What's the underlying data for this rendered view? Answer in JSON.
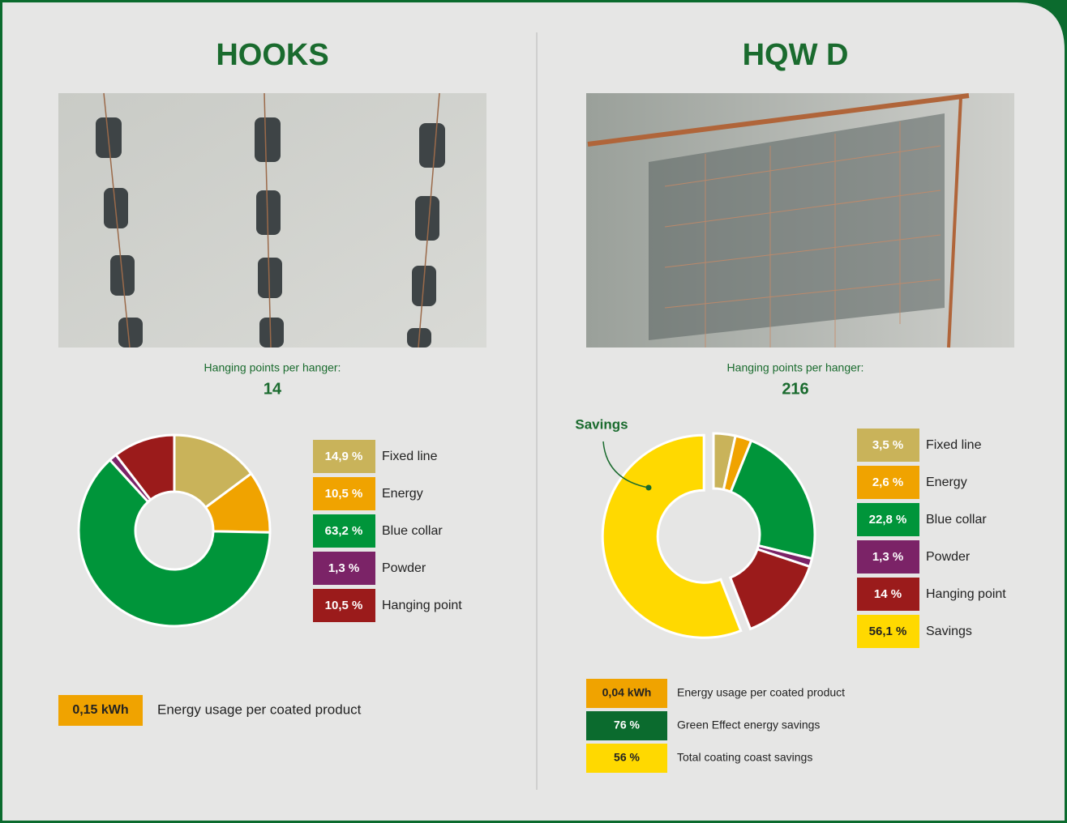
{
  "chart_data": [
    {
      "type": "pie",
      "title": "HOOKS",
      "subtitle": "Hanging points per hanger:",
      "subtitle_value": 14,
      "categories": [
        "Fixed line",
        "Energy",
        "Blue collar",
        "Powder",
        "Hanging point"
      ],
      "values": [
        14.9,
        10.5,
        63.2,
        1.3,
        10.5
      ],
      "value_labels": [
        "14,9 %",
        "10,5 %",
        "63,2 %",
        "1,3 %",
        "10,5 %"
      ],
      "colors": [
        "#c9b35a",
        "#f0a300",
        "#00953a",
        "#7b2367",
        "#9b1b1b"
      ],
      "explode": [
        false,
        false,
        false,
        false,
        false
      ],
      "metrics": [
        {
          "value": 0.15,
          "label": "0,15 kWh",
          "text": "Energy usage per coated product",
          "color": "#f0a300"
        }
      ]
    },
    {
      "type": "pie",
      "title": "HQW D",
      "subtitle": "Hanging points per hanger:",
      "subtitle_value": 216,
      "annotation": "Savings",
      "categories": [
        "Fixed line",
        "Energy",
        "Blue collar",
        "Powder",
        "Hanging point",
        "Savings"
      ],
      "values": [
        3.5,
        2.6,
        22.8,
        1.3,
        14,
        56.1
      ],
      "value_labels": [
        "3,5 %",
        "2,6 %",
        "22,8 %",
        "1,3 %",
        "14 %",
        "56,1 %"
      ],
      "colors": [
        "#c9b35a",
        "#f0a300",
        "#00953a",
        "#7b2367",
        "#9b1b1b",
        "#ffd900"
      ],
      "explode": [
        false,
        false,
        false,
        false,
        false,
        true
      ],
      "metrics": [
        {
          "value": 0.04,
          "label": "0,04 kWh",
          "text": "Energy usage per coated product",
          "color": "#f0a300"
        },
        {
          "value": 76,
          "label": "76 %",
          "text": "Green Effect energy savings",
          "color": "#0b6b2e"
        },
        {
          "value": 56,
          "label": "56 %",
          "text": "Total coating coast savings",
          "color": "#ffd900"
        }
      ]
    }
  ]
}
